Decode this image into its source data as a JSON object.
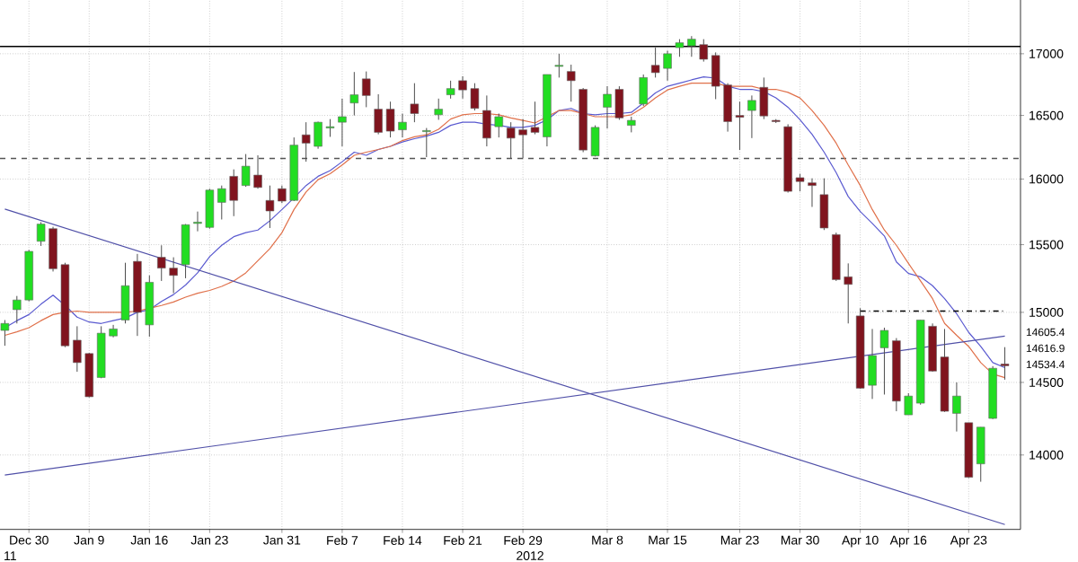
{
  "chart_data": {
    "type": "candlestick",
    "categories": [
      null,
      null,
      "Dec 30",
      null,
      null,
      null,
      null,
      "Jan 9",
      null,
      null,
      null,
      null,
      "Jan 16",
      null,
      null,
      null,
      null,
      "Jan 23",
      null,
      null,
      null,
      null,
      null,
      "Jan 31",
      null,
      null,
      null,
      null,
      "Feb 7",
      null,
      null,
      null,
      null,
      "Feb 14",
      null,
      null,
      null,
      null,
      "Feb 21",
      null,
      null,
      null,
      null,
      "Feb 29",
      null,
      null,
      null,
      null,
      null,
      null,
      "Mar 8",
      null,
      null,
      null,
      null,
      "Mar 15",
      null,
      null,
      null,
      null,
      null,
      "Mar 23",
      null,
      null,
      null,
      null,
      "Mar 30",
      null,
      null,
      null,
      null,
      "Apr 10",
      null,
      null,
      null,
      "Apr 16",
      null,
      null,
      null,
      null,
      "Apr 23",
      null,
      null,
      null
    ],
    "ohlc": [
      [
        14870,
        14945,
        14760,
        14920
      ],
      [
        15020,
        15120,
        14920,
        15090
      ],
      [
        15090,
        15460,
        15080,
        15450
      ],
      [
        15525,
        15670,
        15490,
        15655
      ],
      [
        15620,
        15635,
        15300,
        15320
      ],
      [
        15350,
        15365,
        14750,
        14760
      ],
      [
        14800,
        14900,
        14575,
        14640
      ],
      [
        14705,
        14710,
        14395,
        14400
      ],
      [
        14535,
        14900,
        14530,
        14850
      ],
      [
        14830,
        14910,
        14820,
        14880
      ],
      [
        14945,
        15365,
        14920,
        15195
      ],
      [
        15375,
        15430,
        14830,
        15000
      ],
      [
        14910,
        15270,
        14825,
        15220
      ],
      [
        15405,
        15495,
        15230,
        15325
      ],
      [
        15325,
        15405,
        15140,
        15270
      ],
      [
        15350,
        15655,
        15250,
        15650
      ],
      [
        15660,
        15750,
        15600,
        15670
      ],
      [
        15630,
        15925,
        15620,
        15915
      ],
      [
        15820,
        15950,
        15690,
        15925
      ],
      [
        16020,
        16075,
        15715,
        15835
      ],
      [
        15950,
        16195,
        15940,
        16100
      ],
      [
        16030,
        16185,
        15925,
        15935
      ],
      [
        15835,
        15950,
        15625,
        15755
      ],
      [
        15925,
        15950,
        15815,
        15830
      ],
      [
        15835,
        16325,
        15830,
        16265
      ],
      [
        16345,
        16445,
        16135,
        16280
      ],
      [
        16255,
        16450,
        16235,
        16445
      ],
      [
        16400,
        16470,
        16330,
        16410
      ],
      [
        16445,
        16635,
        16255,
        16490
      ],
      [
        16600,
        16850,
        16500,
        16665
      ],
      [
        16795,
        16855,
        16565,
        16660
      ],
      [
        16550,
        16670,
        16350,
        16365
      ],
      [
        16550,
        16610,
        16325,
        16375
      ],
      [
        16385,
        16515,
        16325,
        16445
      ],
      [
        16590,
        16760,
        16445,
        16515
      ],
      [
        16370,
        16400,
        16170,
        16380
      ],
      [
        16505,
        16635,
        16465,
        16550
      ],
      [
        16665,
        16780,
        16635,
        16715
      ],
      [
        16780,
        16815,
        16635,
        16705
      ],
      [
        16715,
        16760,
        16540,
        16555
      ],
      [
        16540,
        16660,
        16255,
        16320
      ],
      [
        16410,
        16515,
        16325,
        16490
      ],
      [
        16400,
        16445,
        16160,
        16320
      ],
      [
        16385,
        16470,
        16160,
        16345
      ],
      [
        16405,
        16610,
        16350,
        16365
      ],
      [
        16330,
        16830,
        16255,
        16830
      ],
      [
        16895,
        17000,
        16805,
        16905
      ],
      [
        16855,
        16910,
        16610,
        16780
      ],
      [
        16710,
        16720,
        16210,
        16225
      ],
      [
        16180,
        16420,
        16175,
        16405
      ],
      [
        16565,
        16735,
        16395,
        16670
      ],
      [
        16710,
        16735,
        16465,
        16480
      ],
      [
        16420,
        16490,
        16365,
        16460
      ],
      [
        16590,
        16830,
        16575,
        16805
      ],
      [
        16905,
        17050,
        16805,
        16845
      ],
      [
        16880,
        17025,
        16780,
        17000
      ],
      [
        17050,
        17120,
        16975,
        17090
      ],
      [
        17065,
        17145,
        16975,
        17120
      ],
      [
        17075,
        17120,
        16935,
        16955
      ],
      [
        16985,
        17010,
        16630,
        16735
      ],
      [
        16745,
        16760,
        16370,
        16450
      ],
      [
        16500,
        16610,
        16225,
        16485
      ],
      [
        16540,
        16660,
        16320,
        16620
      ],
      [
        16725,
        16805,
        16470,
        16495
      ],
      [
        16460,
        16470,
        16440,
        16450
      ],
      [
        16410,
        16430,
        15895,
        15905
      ],
      [
        16010,
        16040,
        15905,
        15980
      ],
      [
        15970,
        16005,
        15785,
        15950
      ],
      [
        15880,
        16005,
        15610,
        15625
      ],
      [
        15575,
        15590,
        15230,
        15240
      ],
      [
        15260,
        15360,
        14920,
        15205
      ],
      [
        14975,
        15030,
        14455,
        14460
      ],
      [
        14480,
        14880,
        14385,
        14690
      ],
      [
        14745,
        14890,
        14415,
        14870
      ],
      [
        14795,
        14815,
        14300,
        14370
      ],
      [
        14275,
        14425,
        14275,
        14405
      ],
      [
        14355,
        14945,
        14345,
        14945
      ],
      [
        14900,
        14920,
        14575,
        14580
      ],
      [
        14680,
        14880,
        14295,
        14300
      ],
      [
        14285,
        14500,
        14160,
        14405
      ],
      [
        14220,
        14220,
        13845,
        13850
      ],
      [
        13940,
        14190,
        13820,
        14190
      ],
      [
        14250,
        14615,
        14245,
        14600
      ],
      [
        14630,
        14750,
        14520,
        14617
      ]
    ],
    "series": [
      {
        "type": "line",
        "color": "#5a5ad0",
        "values": [
          14890,
          14940,
          14985,
          15060,
          15125,
          15050,
          14965,
          14930,
          14920,
          14940,
          14960,
          15000,
          15020,
          15080,
          15130,
          15200,
          15290,
          15410,
          15495,
          15560,
          15590,
          15610,
          15680,
          15765,
          15855,
          15950,
          16020,
          16065,
          16135,
          16210,
          16185,
          16230,
          16255,
          16290,
          16315,
          16335,
          16365,
          16420,
          16445,
          16445,
          16430,
          16420,
          16405,
          16405,
          16420,
          16465,
          16540,
          16555,
          16515,
          16505,
          16515,
          16515,
          16525,
          16600,
          16680,
          16735,
          16760,
          16785,
          16810,
          16800,
          16735,
          16710,
          16710,
          16690,
          16640,
          16565,
          16465,
          16350,
          16210,
          16050,
          15865,
          15750,
          15660,
          15565,
          15370,
          15285,
          15260,
          15195,
          15100,
          14990,
          14855,
          14755,
          14640,
          14605
        ]
      },
      {
        "type": "line",
        "color": "#e0704a",
        "values": [
          14835,
          14860,
          14890,
          14940,
          14985,
          15000,
          15010,
          15000,
          15000,
          15000,
          15000,
          15010,
          15030,
          15050,
          15075,
          15110,
          15140,
          15160,
          15190,
          15230,
          15290,
          15380,
          15470,
          15590,
          15765,
          15900,
          15995,
          16040,
          16110,
          16185,
          16210,
          16230,
          16255,
          16300,
          16330,
          16345,
          16390,
          16470,
          16505,
          16515,
          16515,
          16505,
          16480,
          16460,
          16440,
          16490,
          16540,
          16540,
          16515,
          16490,
          16490,
          16490,
          16505,
          16565,
          16640,
          16705,
          16735,
          16760,
          16760,
          16760,
          16735,
          16735,
          16735,
          16710,
          16710,
          16685,
          16640,
          16540,
          16420,
          16280,
          16110,
          15950,
          15765,
          15610,
          15495,
          15360,
          15230,
          15100,
          14920,
          14835,
          14755,
          14640,
          14560,
          14534
        ]
      },
      {
        "type": "line",
        "color": "#5050a8",
        "values": [
          15769,
          null,
          null,
          null,
          null,
          null,
          null,
          null,
          null,
          null,
          null,
          null,
          null,
          null,
          null,
          null,
          null,
          null,
          null,
          null,
          null,
          null,
          null,
          null,
          null,
          null,
          null,
          null,
          null,
          null,
          null,
          null,
          null,
          null,
          null,
          null,
          null,
          null,
          null,
          null,
          null,
          null,
          null,
          null,
          null,
          null,
          null,
          null,
          null,
          null,
          null,
          null,
          null,
          null,
          null,
          null,
          null,
          null,
          null,
          null,
          null,
          null,
          null,
          null,
          null,
          null,
          null,
          null,
          null,
          null,
          null,
          null,
          null,
          null,
          null,
          null,
          null,
          null,
          null,
          null,
          null,
          null,
          null,
          13537
        ]
      },
      {
        "type": "line",
        "color": "#5050a8",
        "values": [
          13865,
          null,
          null,
          null,
          null,
          null,
          null,
          null,
          null,
          null,
          null,
          null,
          null,
          null,
          null,
          null,
          null,
          null,
          null,
          null,
          null,
          null,
          null,
          null,
          null,
          null,
          null,
          null,
          null,
          null,
          null,
          null,
          null,
          null,
          null,
          null,
          null,
          null,
          null,
          null,
          null,
          null,
          null,
          null,
          null,
          null,
          null,
          null,
          null,
          null,
          null,
          null,
          null,
          null,
          null,
          null,
          null,
          null,
          null,
          null,
          null,
          null,
          null,
          null,
          null,
          null,
          null,
          null,
          null,
          null,
          null,
          null,
          null,
          null,
          null,
          null,
          null,
          null,
          null,
          null,
          null,
          null,
          null,
          14829
        ]
      },
      {
        "type": "line",
        "color": "#000000",
        "line_style": "dotted",
        "values": [
          null,
          null,
          null,
          null,
          null,
          null,
          null,
          null,
          null,
          null,
          null,
          null,
          null,
          null,
          null,
          null,
          null,
          null,
          null,
          null,
          null,
          null,
          null,
          null,
          null,
          null,
          null,
          null,
          null,
          null,
          null,
          null,
          null,
          null,
          null,
          null,
          null,
          null,
          null,
          null,
          null,
          null,
          null,
          null,
          null,
          null,
          null,
          null,
          null,
          null,
          null,
          null,
          null,
          null,
          null,
          null,
          null,
          null,
          null,
          null,
          null,
          null,
          null,
          null,
          null,
          null,
          null,
          null,
          null,
          null,
          null,
          15010,
          null,
          null,
          null,
          null,
          null,
          null,
          null,
          null,
          null,
          null,
          null,
          15010
        ]
      }
    ],
    "ref_lines": [
      {
        "axis": "y",
        "value": 17060,
        "color": "#000000",
        "line_style": "solid"
      },
      {
        "axis": "y",
        "value": 16160,
        "color": "#555555",
        "line_style": "dashed"
      }
    ],
    "annotations": [
      "11",
      "2012",
      "14605.4",
      "14616.9",
      "14534.4"
    ],
    "ylim": [
      13505,
      17450
    ],
    "log": true,
    "yticks": [
      14000,
      14500,
      15000,
      15500,
      16000,
      16500,
      17000
    ],
    "grid": true,
    "marker": "none"
  }
}
